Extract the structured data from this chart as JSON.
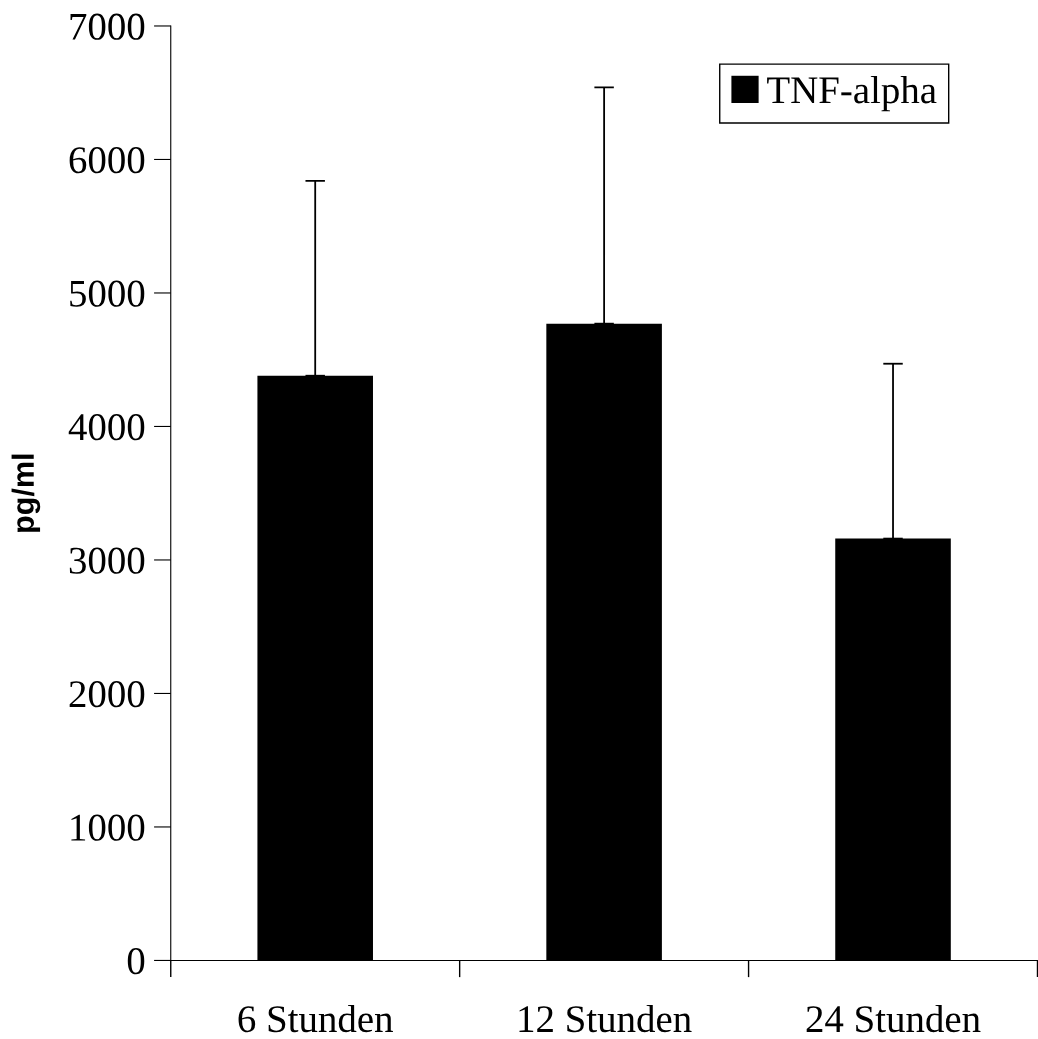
{
  "chart_data": {
    "type": "bar",
    "ylabel": "pg/ml",
    "categories": [
      "6 Stunden",
      "12 Stunden",
      "24 Stunden"
    ],
    "series": [
      {
        "name": "TNF-alpha",
        "color": "#000000",
        "values": [
          4380,
          4770,
          3160
        ],
        "errors": [
          [
            4380,
            5840
          ],
          [
            4770,
            6540
          ],
          [
            3160,
            4470
          ]
        ]
      }
    ],
    "ylim": [
      0,
      7000
    ],
    "yticks": [
      0,
      1000,
      2000,
      3000,
      4000,
      5000,
      6000,
      7000
    ],
    "grid": false,
    "legend": "top right"
  }
}
